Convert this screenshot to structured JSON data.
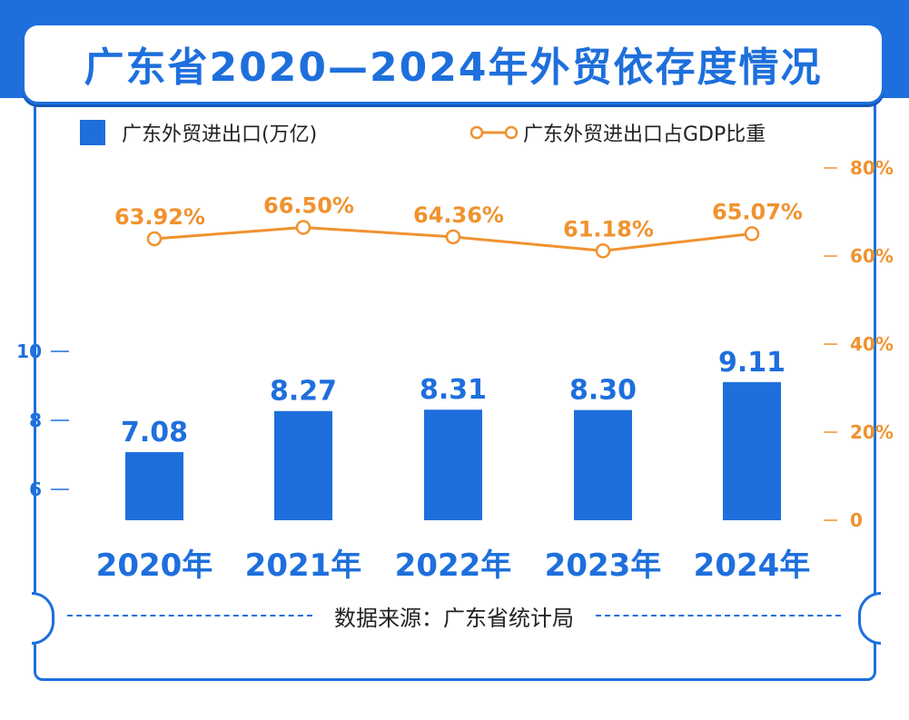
{
  "title": "广东省2020—2024年外贸依存度情况",
  "legend": {
    "bar": "广东外贸进出口(万亿)",
    "line": "广东外贸进出口占GDP比重"
  },
  "source": "数据来源：广东省统计局",
  "colors": {
    "primary": "#1e6fdc",
    "accent": "#f0922f"
  },
  "chart_data": {
    "type": "bar+line",
    "categories": [
      "2020年",
      "2021年",
      "2022年",
      "2023年",
      "2024年"
    ],
    "series": [
      {
        "name": "广东外贸进出口(万亿)",
        "type": "bar",
        "axis": "left",
        "values": [
          7.08,
          8.27,
          8.31,
          8.3,
          9.11
        ],
        "labels": [
          "7.08",
          "8.27",
          "8.31",
          "8.30",
          "9.11"
        ]
      },
      {
        "name": "广东外贸进出口占GDP比重",
        "type": "line",
        "axis": "right",
        "values": [
          63.92,
          66.5,
          64.36,
          61.18,
          65.07
        ],
        "labels": [
          "63.92%",
          "66.50%",
          "64.36%",
          "61.18%",
          "65.07%"
        ]
      }
    ],
    "y_left": {
      "ticks": [
        6,
        8,
        10
      ],
      "tick_labels": [
        "6",
        "8",
        "10"
      ],
      "range": [
        4.6,
        10
      ]
    },
    "y_right": {
      "ticks": [
        0,
        20,
        40,
        60,
        80
      ],
      "tick_labels": [
        "0",
        "20%",
        "40%",
        "60%",
        "80%"
      ],
      "range": [
        0,
        80
      ]
    }
  }
}
